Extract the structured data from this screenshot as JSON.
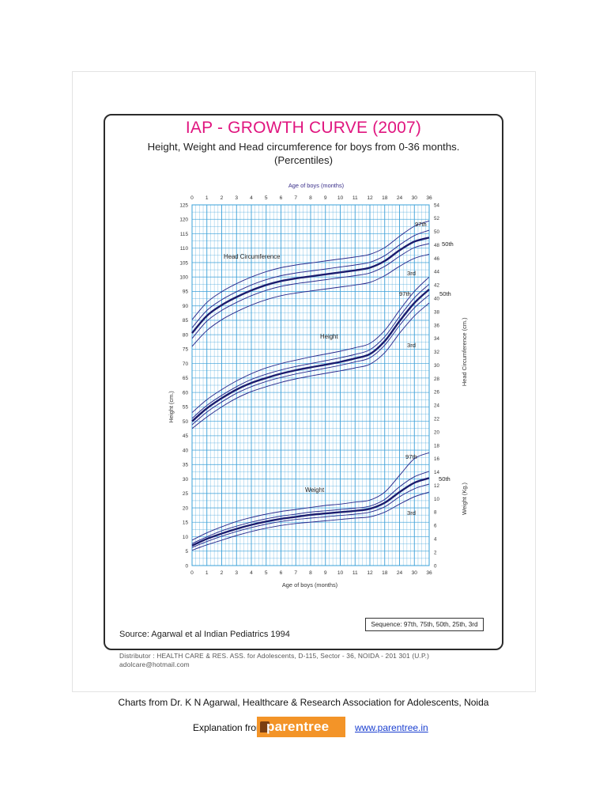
{
  "page": {
    "title": "IAP - GROWTH CURVE (2007)",
    "subtitle_line1": "Height, Weight and Head circumference for boys from 0-36 months.",
    "subtitle_line2": "(Percentiles)",
    "source": "Source: Agarwal et al Indian Pediatrics 1994",
    "sequence": "Sequence: 97th, 75th, 50th, 25th, 3rd",
    "distributor_line1": "Distributor : HEALTH CARE & RES. ASS. for Adolescents,   D-115, Sector - 36, NOIDA - 201 301 (U.P.)",
    "distributor_line2": "adolcare@hotmail.com",
    "credit": "Charts from Dr. K N Agarwal, Healthcare & Research Association for Adolescents, Noida",
    "explanation_label": "Explanation from",
    "logo_text": "parentree",
    "link_text": "www.parentree.in"
  },
  "colors": {
    "title": "#e0157f",
    "grid": "#3aa0d8",
    "curve": "#2a2a8c",
    "median": "#1c1c6e",
    "link": "#1a3fd0",
    "logo": "#f39428"
  },
  "chart_data": {
    "type": "line",
    "xlabel_top": "Age of boys (months)",
    "xlabel_bottom": "Age of boys (months)",
    "ylabel_left": "Height (cm.)",
    "ylabel_right_head": "Head Circumference (cm.)",
    "ylabel_right_weight": "Weight (Kg.)",
    "x_ticks": [
      "0",
      "1",
      "2",
      "3",
      "4",
      "5",
      "6",
      "7",
      "8",
      "9",
      "10",
      "11",
      "12",
      "18",
      "24",
      "30",
      "36"
    ],
    "x_positions": [
      0,
      1,
      2,
      3,
      4,
      5,
      6,
      7,
      8,
      9,
      10,
      11,
      12,
      13,
      14,
      15,
      16
    ],
    "y_left_ticks": [
      "0",
      "5",
      "10",
      "15",
      "20",
      "25",
      "30",
      "35",
      "40",
      "45",
      "50",
      "55",
      "60",
      "65",
      "70",
      "75",
      "80",
      "85",
      "90",
      "95",
      "100",
      "105",
      "110",
      "115",
      "120",
      "125"
    ],
    "y_left_range": [
      0,
      125
    ],
    "y_right_ticks": [
      "0",
      "2",
      "4",
      "6",
      "8",
      "10",
      "12",
      "14",
      "16",
      "18",
      "20",
      "22",
      "24",
      "26",
      "28",
      "30",
      "32",
      "34",
      "36",
      "38",
      "40",
      "42",
      "44",
      "46",
      "48",
      "50",
      "52",
      "54"
    ],
    "y_right_range": [
      0,
      54
    ],
    "grid": true,
    "sections": [
      {
        "name": "Head Circumference",
        "axis": "right",
        "labels_shown": [
          "97th",
          "50th",
          "3rd"
        ],
        "percentiles": [
          {
            "name": "97th",
            "values": [
              36.8,
              39.4,
              41.0,
              42.2,
              43.2,
              44.0,
              44.6,
              45.0,
              45.3,
              45.6,
              45.9,
              46.2,
              46.6,
              47.6,
              49.3,
              50.8,
              51.6
            ]
          },
          {
            "name": "75th",
            "values": [
              35.6,
              38.2,
              39.8,
              41.0,
              42.0,
              42.8,
              43.4,
              43.8,
              44.1,
              44.4,
              44.7,
              45.0,
              45.4,
              46.4,
              48.0,
              49.4,
              50.2
            ]
          },
          {
            "name": "50th",
            "values": [
              34.8,
              37.4,
              39.0,
              40.2,
              41.2,
              42.0,
              42.6,
              43.0,
              43.3,
              43.6,
              43.9,
              44.2,
              44.6,
              45.6,
              47.2,
              48.5,
              49.1
            ]
          },
          {
            "name": "25th",
            "values": [
              34.0,
              36.6,
              38.2,
              39.4,
              40.4,
              41.2,
              41.8,
              42.2,
              42.5,
              42.8,
              43.1,
              43.4,
              43.8,
              44.8,
              46.3,
              47.6,
              48.2
            ]
          },
          {
            "name": "3rd",
            "values": [
              32.8,
              35.2,
              36.8,
              38.0,
              39.0,
              39.8,
              40.4,
              40.8,
              41.1,
              41.4,
              41.7,
              42.0,
              42.4,
              43.4,
              44.8,
              46.0,
              46.6
            ]
          }
        ]
      },
      {
        "name": "Height",
        "axis": "left",
        "labels_shown": [
          "97th",
          "50th",
          "3rd"
        ],
        "percentiles": [
          {
            "name": "97th",
            "values": [
              53.0,
              57.5,
              61.0,
              64.0,
              66.5,
              68.5,
              70.0,
              71.2,
              72.3,
              73.3,
              74.3,
              75.5,
              77.0,
              81.5,
              88.5,
              95.0,
              100.0
            ]
          },
          {
            "name": "75th",
            "values": [
              51.0,
              55.5,
              59.0,
              62.0,
              64.5,
              66.3,
              67.8,
              69.0,
              70.0,
              71.0,
              72.0,
              73.2,
              74.8,
              79.3,
              86.3,
              92.8,
              97.5
            ]
          },
          {
            "name": "50th",
            "values": [
              50.0,
              54.5,
              58.0,
              61.0,
              63.3,
              65.0,
              66.5,
              67.7,
              68.7,
              69.6,
              70.6,
              71.8,
              73.3,
              77.8,
              84.7,
              91.0,
              95.7
            ]
          },
          {
            "name": "25th",
            "values": [
              48.8,
              53.2,
              56.7,
              59.7,
              62.0,
              63.8,
              65.2,
              66.4,
              67.4,
              68.4,
              69.4,
              70.6,
              72.0,
              76.4,
              83.2,
              89.3,
              93.8
            ]
          },
          {
            "name": "3rd",
            "values": [
              47.5,
              51.5,
              55.0,
              58.0,
              60.3,
              62.0,
              63.5,
              64.7,
              65.7,
              66.6,
              67.5,
              68.5,
              69.8,
              73.8,
              80.5,
              86.5,
              91.0
            ]
          }
        ]
      },
      {
        "name": "Weight",
        "axis": "right",
        "labels_shown": [
          "97th",
          "50th",
          "3rd"
        ],
        "percentiles": [
          {
            "name": "97th",
            "values": [
              3.8,
              4.9,
              5.8,
              6.6,
              7.2,
              7.7,
              8.1,
              8.4,
              8.7,
              9.0,
              9.2,
              9.5,
              9.8,
              11.0,
              13.5,
              16.0,
              16.9
            ]
          },
          {
            "name": "75th",
            "values": [
              3.3,
              4.3,
              5.2,
              5.9,
              6.5,
              7.0,
              7.4,
              7.7,
              8.0,
              8.2,
              8.4,
              8.6,
              8.9,
              9.9,
              11.8,
              13.3,
              14.1
            ]
          },
          {
            "name": "50th",
            "values": [
              3.0,
              4.0,
              4.8,
              5.5,
              6.1,
              6.6,
              7.0,
              7.3,
              7.6,
              7.8,
              8.0,
              8.2,
              8.5,
              9.4,
              11.0,
              12.4,
              13.1
            ]
          },
          {
            "name": "25th",
            "values": [
              2.7,
              3.6,
              4.4,
              5.1,
              5.7,
              6.2,
              6.6,
              6.9,
              7.1,
              7.3,
              7.5,
              7.7,
              8.0,
              8.8,
              10.3,
              11.5,
              12.2
            ]
          },
          {
            "name": "3rd",
            "values": [
              2.3,
              3.1,
              3.8,
              4.5,
              5.1,
              5.6,
              6.0,
              6.3,
              6.5,
              6.7,
              6.9,
              7.1,
              7.3,
              8.0,
              9.2,
              10.3,
              11.0
            ]
          }
        ]
      }
    ]
  }
}
